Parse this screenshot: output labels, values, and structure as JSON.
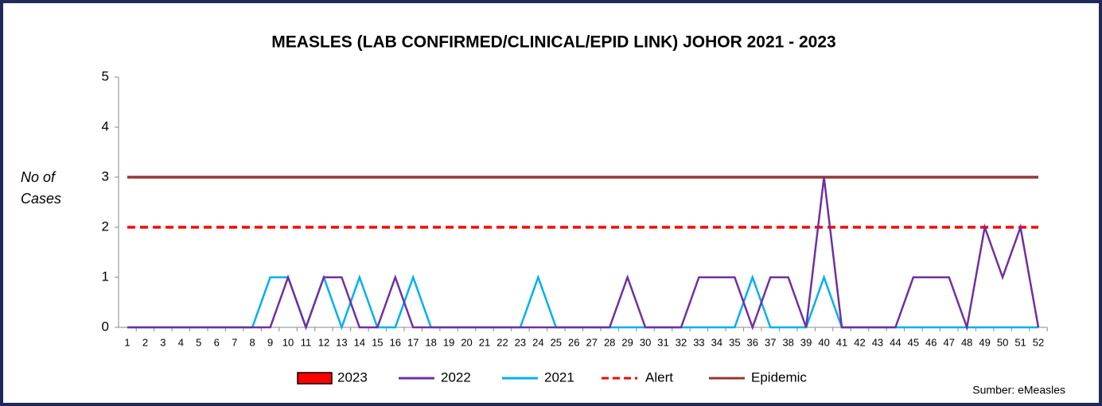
{
  "chart_data": {
    "type": "line",
    "title": "MEASLES (LAB CONFIRMED/CLINICAL/EPID LINK) JOHOR 2021 - 2023",
    "y_label": "No of Cases",
    "source": "Sumber: eMeasles",
    "categories": [
      1,
      2,
      3,
      4,
      5,
      6,
      7,
      8,
      9,
      10,
      11,
      12,
      13,
      14,
      15,
      16,
      17,
      18,
      19,
      20,
      21,
      22,
      23,
      24,
      25,
      26,
      27,
      28,
      29,
      30,
      31,
      32,
      33,
      34,
      35,
      36,
      37,
      38,
      39,
      40,
      41,
      42,
      43,
      44,
      45,
      46,
      47,
      48,
      49,
      50,
      51,
      52
    ],
    "ylim": [
      0,
      5
    ],
    "yticks": [
      0,
      1,
      2,
      3,
      4,
      5
    ],
    "grid": false,
    "series": [
      {
        "name": "2023",
        "color": "#ff0000",
        "marker": "box",
        "values": [
          null,
          null,
          null,
          null,
          null,
          null,
          null,
          null,
          null,
          null,
          null,
          null,
          null,
          null,
          null,
          null,
          null,
          null,
          null,
          null,
          null,
          null,
          null,
          null,
          null,
          null,
          null,
          null,
          null,
          null,
          null,
          null,
          null,
          null,
          null,
          null,
          null,
          null,
          null,
          null,
          null,
          null,
          null,
          null,
          null,
          null,
          null,
          null,
          null,
          null,
          null,
          null
        ]
      },
      {
        "name": "2022",
        "color": "#7030a0",
        "values": [
          0,
          0,
          0,
          0,
          0,
          0,
          0,
          0,
          0,
          1,
          0,
          1,
          1,
          0,
          0,
          1,
          0,
          0,
          0,
          0,
          0,
          0,
          0,
          0,
          0,
          0,
          0,
          0,
          1,
          0,
          0,
          0,
          1,
          1,
          1,
          0,
          1,
          1,
          0,
          3,
          0,
          0,
          0,
          0,
          1,
          1,
          1,
          0,
          2,
          1,
          2,
          0
        ]
      },
      {
        "name": "2021",
        "color": "#00b0f0",
        "values": [
          0,
          0,
          0,
          0,
          0,
          0,
          0,
          0,
          1,
          1,
          0,
          1,
          0,
          1,
          0,
          0,
          1,
          0,
          0,
          0,
          0,
          0,
          0,
          1,
          0,
          0,
          0,
          0,
          0,
          0,
          0,
          0,
          0,
          0,
          0,
          1,
          0,
          0,
          0,
          1,
          0,
          0,
          0,
          0,
          0,
          0,
          0,
          0,
          0,
          0,
          0,
          0
        ]
      },
      {
        "name": "Alert",
        "color": "#ff0000",
        "line_style": "dashed",
        "values": [
          2,
          2,
          2,
          2,
          2,
          2,
          2,
          2,
          2,
          2,
          2,
          2,
          2,
          2,
          2,
          2,
          2,
          2,
          2,
          2,
          2,
          2,
          2,
          2,
          2,
          2,
          2,
          2,
          2,
          2,
          2,
          2,
          2,
          2,
          2,
          2,
          2,
          2,
          2,
          2,
          2,
          2,
          2,
          2,
          2,
          2,
          2,
          2,
          2,
          2,
          2,
          2
        ]
      },
      {
        "name": "Epidemic",
        "color": "#943634",
        "values": [
          3,
          3,
          3,
          3,
          3,
          3,
          3,
          3,
          3,
          3,
          3,
          3,
          3,
          3,
          3,
          3,
          3,
          3,
          3,
          3,
          3,
          3,
          3,
          3,
          3,
          3,
          3,
          3,
          3,
          3,
          3,
          3,
          3,
          3,
          3,
          3,
          3,
          3,
          3,
          3,
          3,
          3,
          3,
          3,
          3,
          3,
          3,
          3,
          3,
          3,
          3,
          3
        ]
      }
    ]
  }
}
